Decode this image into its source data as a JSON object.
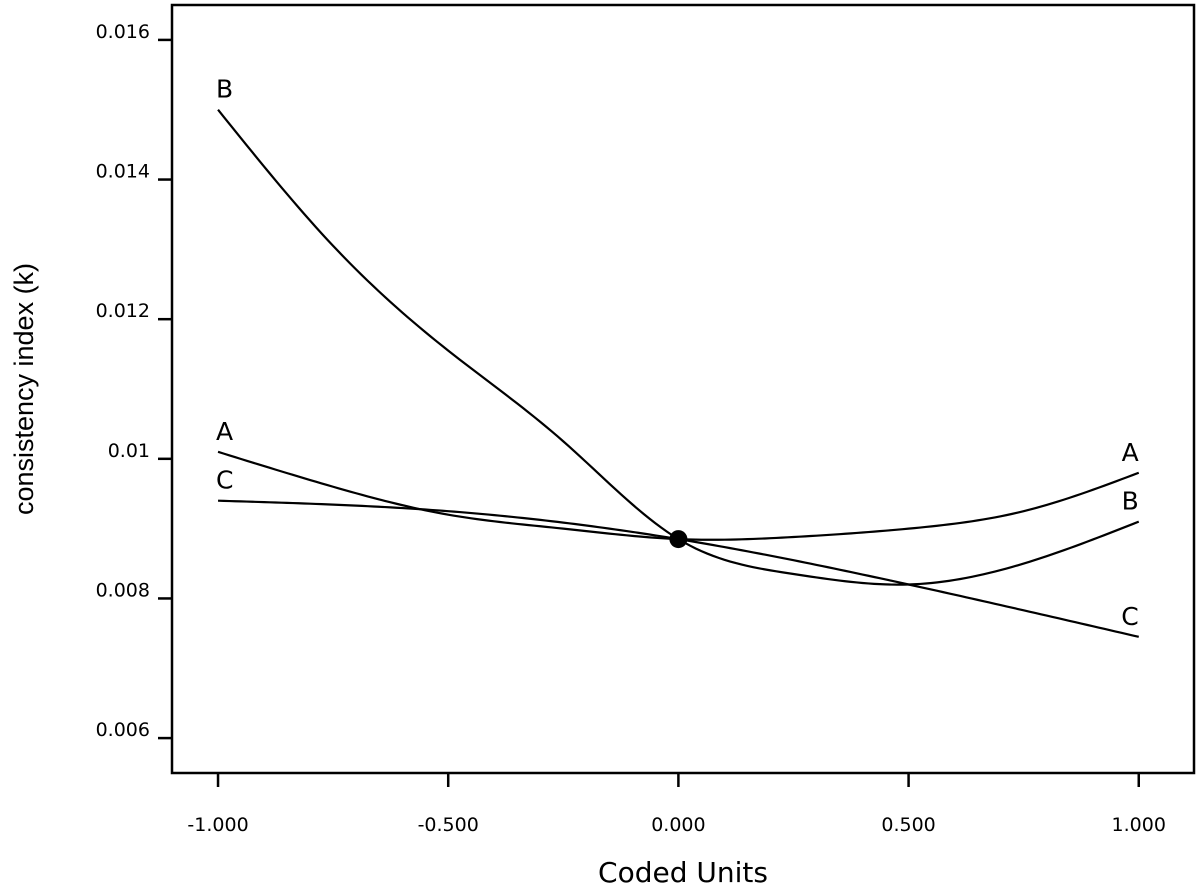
{
  "chart_data": {
    "type": "line",
    "title": "",
    "xlabel": "Coded Units",
    "ylabel": "consistency index (k)",
    "xlim": [
      -1.1,
      1.12
    ],
    "ylim": [
      0.0055,
      0.0165
    ],
    "x_ticks": [
      -1.0,
      -0.5,
      0.0,
      0.5,
      1.0
    ],
    "x_tick_labels": [
      "-1.000",
      "-0.500",
      "0.000",
      "0.500",
      "1.000"
    ],
    "y_ticks": [
      0.006,
      0.008,
      0.01,
      0.012,
      0.014,
      0.016
    ],
    "y_tick_labels": [
      "0.006",
      "0.008",
      "0.01",
      "0.012",
      "0.014",
      "0.016"
    ],
    "grid": false,
    "legend": "none",
    "reference_point": {
      "x": 0.0,
      "y": 0.00885
    },
    "series": [
      {
        "name": "A",
        "x": [
          -1.0,
          -0.75,
          -0.5,
          -0.25,
          0.0,
          0.25,
          0.5,
          0.75,
          1.0
        ],
        "y": [
          0.0101,
          0.0096,
          0.0092,
          0.009,
          0.00885,
          0.00888,
          0.009,
          0.00925,
          0.0098
        ]
      },
      {
        "name": "B",
        "x": [
          -1.0,
          -0.75,
          -0.5,
          -0.25,
          0.0,
          0.25,
          0.5,
          0.75,
          1.0
        ],
        "y": [
          0.015,
          0.01305,
          0.01155,
          0.01025,
          0.00885,
          0.00835,
          0.0082,
          0.0085,
          0.0091
        ]
      },
      {
        "name": "C",
        "x": [
          -1.0,
          -0.5,
          0.0,
          0.5,
          1.0
        ],
        "y": [
          0.0094,
          0.00925,
          0.00885,
          0.0082,
          0.00745
        ]
      }
    ]
  }
}
